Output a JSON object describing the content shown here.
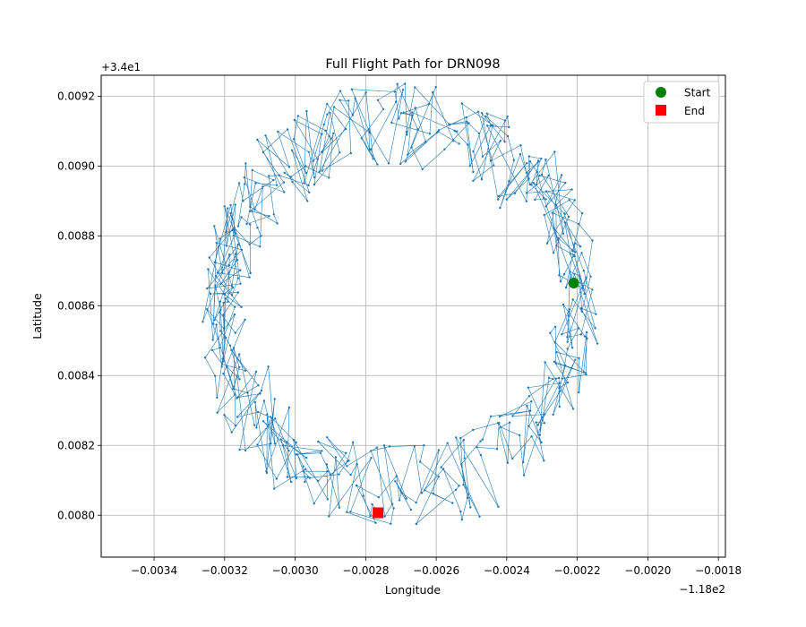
{
  "chart_data": {
    "type": "line",
    "title": "Full Flight Path for DRN098",
    "xlabel": "Longitude",
    "ylabel": "Latitude",
    "x_offset_label": "−1.18e2",
    "y_offset_label": "+3.4e1",
    "xlim": [
      -0.00355,
      -0.00178
    ],
    "ylim": [
      0.00788,
      0.00926
    ],
    "x_ticks": [
      -0.0034,
      -0.0032,
      -0.003,
      -0.0028,
      -0.0026,
      -0.0024,
      -0.0022,
      -0.002,
      -0.0018
    ],
    "x_tick_labels": [
      "−0.0034",
      "−0.0032",
      "−0.0030",
      "−0.0028",
      "−0.0026",
      "−0.0024",
      "−0.0022",
      "−0.0020",
      "−0.0018"
    ],
    "y_ticks": [
      0.008,
      0.0082,
      0.0084,
      0.0086,
      0.0088,
      0.009,
      0.0092
    ],
    "y_tick_labels": [
      "0.0080",
      "0.0082",
      "0.0084",
      "0.0086",
      "0.0088",
      "0.0090",
      "0.0092"
    ],
    "grid": true,
    "legend_position": "top-right",
    "path_color": "#1f77b4",
    "path": {
      "shape": "noisy circular loop",
      "center": [
        -0.0027,
        0.0086
      ],
      "radius": [
        0.00051,
        0.00052
      ],
      "jitter": [
        6e-05,
        0.00012
      ],
      "n_points": 520,
      "start_angle_deg": 12.5,
      "end_angle_deg": 262,
      "loops": 3
    },
    "start": {
      "label": "Start",
      "x": -0.00221,
      "y": 0.008665,
      "color": "#008000",
      "marker": "circle"
    },
    "end": {
      "label": "End",
      "x": -0.002765,
      "y": 0.008007,
      "color": "#ff0000",
      "marker": "square"
    }
  }
}
